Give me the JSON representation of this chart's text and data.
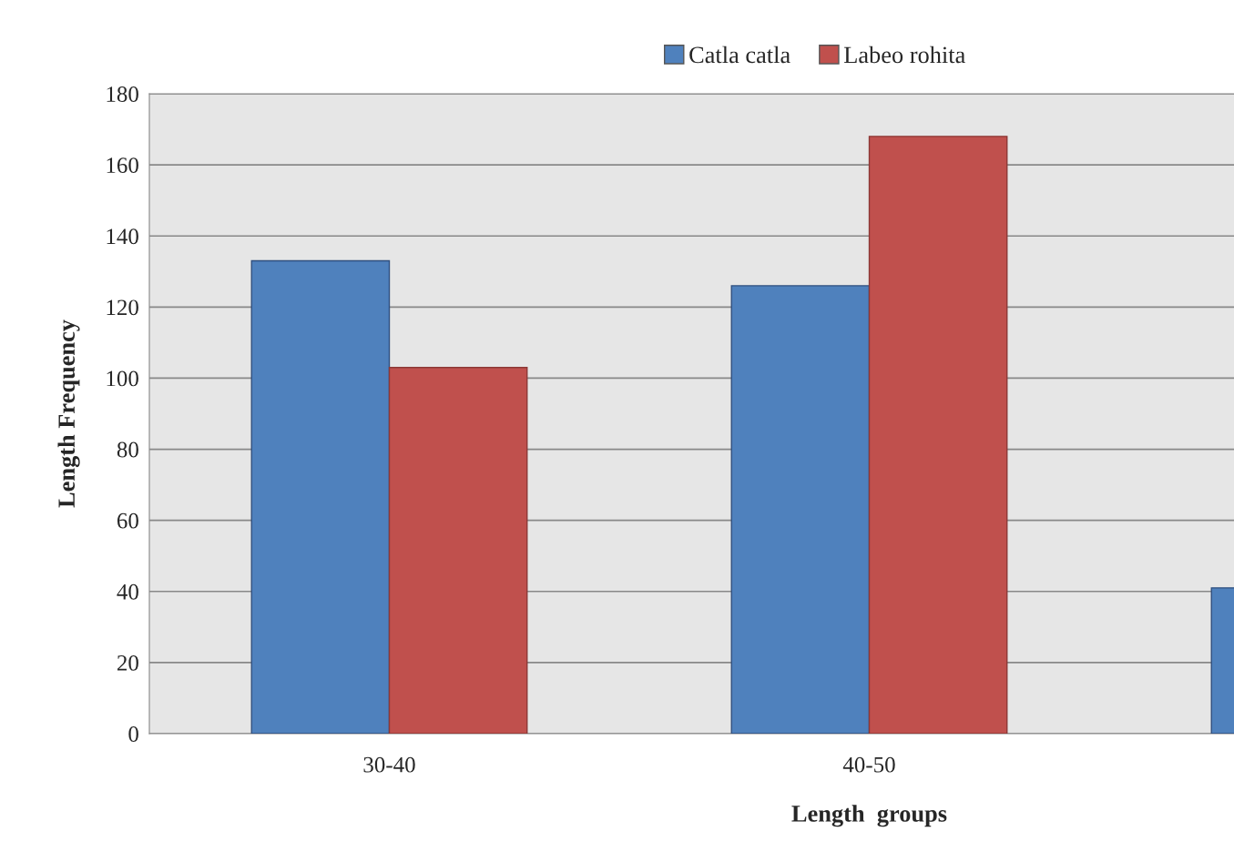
{
  "chart_data": {
    "type": "bar",
    "xlabel": "Length  groups",
    "ylabel": "Length Frequency",
    "categories": [
      "30-40",
      "40-50",
      null
    ],
    "series": [
      {
        "name": "Catla catla",
        "color": "#4f81bd",
        "values": [
          133,
          126,
          41
        ]
      },
      {
        "name": "Labeo rohita",
        "color": "#c0504d",
        "values": [
          103,
          168,
          null
        ]
      }
    ],
    "ylim": [
      0,
      180
    ],
    "yticks": [
      0,
      20,
      40,
      60,
      80,
      100,
      120,
      140,
      160,
      180
    ],
    "grid": "y",
    "legend": "top"
  }
}
